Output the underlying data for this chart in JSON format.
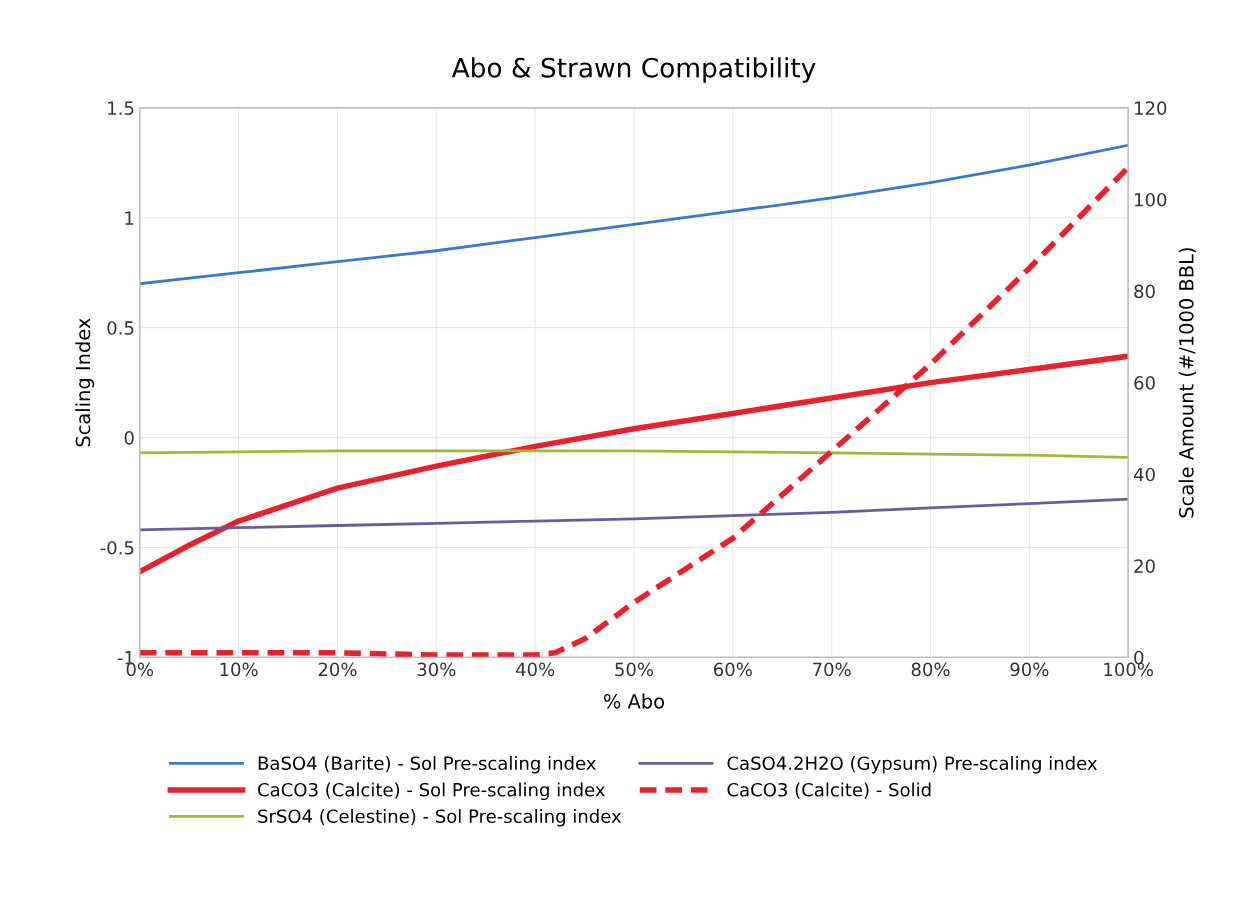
{
  "chart_data": {
    "type": "line",
    "title": "Abo & Strawn Compatibility",
    "xlabel": "% Abo",
    "ylabel": "Scaling Index",
    "y2label": "Scale Amount (#/1000 BBL)",
    "x": [
      0,
      10,
      20,
      30,
      40,
      50,
      60,
      70,
      80,
      90,
      100
    ],
    "xlim": [
      0,
      100
    ],
    "xticks": [
      {
        "value": 0,
        "label": "0%"
      },
      {
        "value": 10,
        "label": "10%"
      },
      {
        "value": 20,
        "label": "20%"
      },
      {
        "value": 30,
        "label": "30%"
      },
      {
        "value": 40,
        "label": "40%"
      },
      {
        "value": 50,
        "label": "50%"
      },
      {
        "value": 60,
        "label": "60%"
      },
      {
        "value": 70,
        "label": "70%"
      },
      {
        "value": 80,
        "label": "80%"
      },
      {
        "value": 90,
        "label": "90%"
      },
      {
        "value": 100,
        "label": "100%"
      }
    ],
    "ylim": [
      -1,
      1.5
    ],
    "yticks": [
      -1,
      -0.5,
      0,
      0.5,
      1,
      1.5
    ],
    "y2lim": [
      0,
      120
    ],
    "y2ticks": [
      0,
      20,
      40,
      60,
      80,
      100,
      120
    ],
    "grid": true,
    "legend": "bottom",
    "series": [
      {
        "name": "BaSO4 (Barite) - Sol Pre-scaling index",
        "color": "#3a78c9",
        "values": [
          0.7,
          0.75,
          0.8,
          0.85,
          0.91,
          0.97,
          1.03,
          1.09,
          1.16,
          1.24,
          1.33
        ]
      },
      {
        "name": "CaCO3 (Calcite) - Sol Pre-scaling index",
        "color": "#e8212f",
        "x": [
          0,
          5,
          10,
          20,
          30,
          40,
          50,
          60,
          70,
          80,
          90,
          100
        ],
        "values": [
          -0.61,
          -0.49,
          -0.38,
          -0.23,
          -0.13,
          -0.04,
          0.04,
          0.11,
          0.18,
          0.25,
          0.31,
          0.37
        ]
      },
      {
        "name": "SrSO4 (Celestine) - Sol Pre-scaling index",
        "color": "#9bbb3b",
        "values": [
          -0.07,
          -0.065,
          -0.06,
          -0.06,
          -0.06,
          -0.06,
          -0.065,
          -0.07,
          -0.075,
          -0.08,
          -0.09
        ]
      },
      {
        "name": "CaSO4.2H2O (Gypsum) Pre-scaling index",
        "color": "#6a5b9e",
        "values": [
          -0.42,
          -0.41,
          -0.4,
          -0.39,
          -0.38,
          -0.37,
          -0.355,
          -0.34,
          -0.32,
          -0.3,
          -0.28
        ]
      },
      {
        "name": "CaCO3 (Calcite) - Solid",
        "color": "#e8212f",
        "axis": "y2",
        "line_style": "dashed",
        "x": [
          0,
          10,
          20,
          30,
          40,
          42,
          45,
          50,
          60,
          70,
          80,
          90,
          100
        ],
        "values": [
          1,
          1,
          1,
          0.5,
          0.5,
          1,
          4,
          12,
          26,
          45,
          64,
          85,
          107
        ]
      }
    ]
  }
}
